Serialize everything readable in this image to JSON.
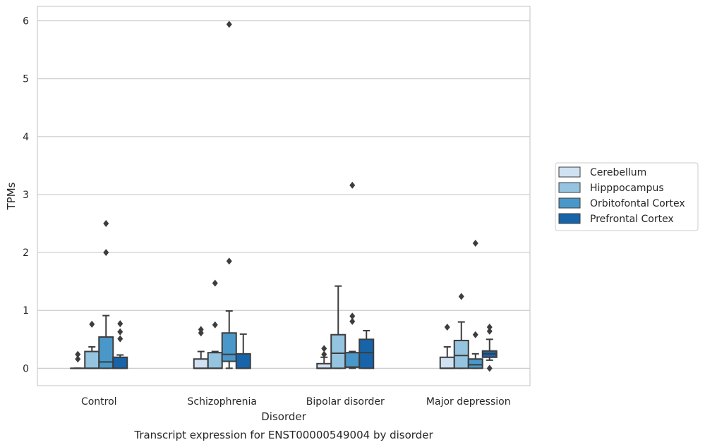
{
  "chart_data": {
    "type": "box",
    "title": "",
    "caption": "Transcript expression for ENST00000549004 by disorder",
    "xlabel": "Disorder",
    "ylabel": "TPMs",
    "ylim": [
      -0.3,
      6.25
    ],
    "yticks": [
      0,
      1,
      2,
      3,
      4,
      5,
      6
    ],
    "grid": "horizontal",
    "legend_position": "right",
    "categories": [
      "Control",
      "Schizophrenia",
      "Bipolar disorder",
      "Major depression"
    ],
    "series": [
      {
        "name": "Cerebellum",
        "color": "#d0e1f2",
        "boxes": [
          {
            "whislo": 0,
            "q1": 0,
            "med": 0,
            "q3": 0,
            "whishi": 0,
            "fliers": [
              0.16,
              0.24
            ]
          },
          {
            "whislo": 0,
            "q1": 0,
            "med": 0,
            "q3": 0.16,
            "whishi": 0.29,
            "fliers": [
              0.61,
              0.67
            ]
          },
          {
            "whislo": 0,
            "q1": 0,
            "med": 0,
            "q3": 0.08,
            "whishi": 0.19,
            "fliers": [
              0.24,
              0.34
            ]
          },
          {
            "whislo": 0,
            "q1": 0,
            "med": 0,
            "q3": 0.19,
            "whishi": 0.37,
            "fliers": [
              0.71
            ]
          }
        ]
      },
      {
        "name": "Hipppocampus",
        "color": "#94c4df",
        "boxes": [
          {
            "whislo": 0,
            "q1": 0,
            "med": 0,
            "q3": 0.29,
            "whishi": 0.37,
            "fliers": [
              0.76
            ]
          },
          {
            "whislo": 0,
            "q1": 0,
            "med": 0,
            "q3": 0.27,
            "whishi": 0.29,
            "fliers": [
              0.75,
              1.47
            ]
          },
          {
            "whislo": 0,
            "q1": 0,
            "med": 0.26,
            "q3": 0.58,
            "whishi": 1.42,
            "fliers": []
          },
          {
            "whislo": 0,
            "q1": 0,
            "med": 0.22,
            "q3": 0.48,
            "whishi": 0.8,
            "fliers": [
              1.24
            ]
          }
        ]
      },
      {
        "name": "Orbitofontal Cortex",
        "color": "#4a98c9",
        "boxes": [
          {
            "whislo": 0,
            "q1": 0,
            "med": 0.11,
            "q3": 0.54,
            "whishi": 0.91,
            "fliers": [
              2.0,
              2.5
            ]
          },
          {
            "whislo": 0,
            "q1": 0.12,
            "med": 0.24,
            "q3": 0.61,
            "whishi": 0.99,
            "fliers": [
              1.85,
              5.94
            ]
          },
          {
            "whislo": 0,
            "q1": 0.02,
            "med": 0.02,
            "q3": 0.27,
            "whishi": 0.29,
            "fliers": [
              0.81,
              0.9,
              3.16
            ]
          },
          {
            "whislo": 0,
            "q1": 0,
            "med": 0.06,
            "q3": 0.16,
            "whishi": 0.25,
            "fliers": [
              0.58,
              2.16
            ]
          }
        ]
      },
      {
        "name": "Prefrontal Cortex",
        "color": "#1764ab",
        "boxes": [
          {
            "whislo": 0,
            "q1": 0,
            "med": 0,
            "q3": 0.19,
            "whishi": 0.23,
            "fliers": [
              0.51,
              0.63,
              0.77
            ]
          },
          {
            "whislo": 0,
            "q1": 0,
            "med": 0,
            "q3": 0.25,
            "whishi": 0.59,
            "fliers": []
          },
          {
            "whislo": 0,
            "q1": 0,
            "med": 0.27,
            "q3": 0.5,
            "whishi": 0.65,
            "fliers": []
          },
          {
            "whislo": 0.14,
            "q1": 0.19,
            "med": 0.25,
            "q3": 0.3,
            "whishi": 0.5,
            "fliers": [
              0,
              0.64,
              0.71
            ]
          }
        ]
      }
    ]
  }
}
